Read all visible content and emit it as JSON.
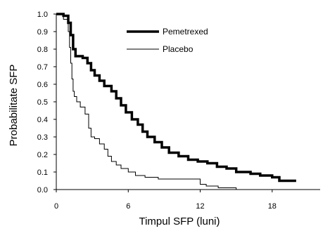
{
  "chart_data": {
    "type": "line",
    "xlabel": "Timpul SFP (luni)",
    "ylabel": "Probabilitate SFP",
    "xlim": [
      0,
      22
    ],
    "ylim": [
      0,
      1.0
    ],
    "x_ticks": [
      0,
      6,
      12,
      18
    ],
    "x_tick_labels": [
      "0",
      "6",
      "12",
      "18"
    ],
    "y_ticks": [
      0,
      0.1,
      0.2,
      0.3,
      0.4,
      0.5,
      0.6,
      0.7,
      0.8,
      0.9,
      1.0
    ],
    "y_tick_labels": [
      "0.0",
      "0.1",
      "0.2",
      "0.3",
      "0.4",
      "0.5",
      "0.6",
      "0.7",
      "0.8",
      "0.9",
      "1.0"
    ],
    "grid": false,
    "legend_position": "top-center",
    "series": [
      {
        "name": "Pemetrexed",
        "style": "step",
        "color": "#000000",
        "line": "thick",
        "x": [
          0,
          0.6,
          1.0,
          1.2,
          1.4,
          1.6,
          2.2,
          2.6,
          2.9,
          3.2,
          3.6,
          4.0,
          4.6,
          5.0,
          5.4,
          5.8,
          6.3,
          6.8,
          7.2,
          7.6,
          8.2,
          8.8,
          9.4,
          10.2,
          11.0,
          11.8,
          12.6,
          13.4,
          14.2,
          15.0,
          16.2,
          17.0,
          18.0,
          18.6,
          20.0
        ],
        "y": [
          1.0,
          0.99,
          0.95,
          0.88,
          0.8,
          0.76,
          0.75,
          0.72,
          0.68,
          0.65,
          0.62,
          0.59,
          0.56,
          0.52,
          0.48,
          0.44,
          0.4,
          0.37,
          0.33,
          0.3,
          0.27,
          0.24,
          0.21,
          0.19,
          0.17,
          0.16,
          0.15,
          0.13,
          0.12,
          0.1,
          0.09,
          0.08,
          0.07,
          0.05,
          0.05
        ]
      },
      {
        "name": "Placebo",
        "style": "step",
        "color": "#000000",
        "line": "thin",
        "x": [
          0,
          0.6,
          1.0,
          1.1,
          1.2,
          1.3,
          1.4,
          1.5,
          1.7,
          2.0,
          2.4,
          2.7,
          2.9,
          3.2,
          3.6,
          4.0,
          4.3,
          4.6,
          5.0,
          5.4,
          6.0,
          6.6,
          7.4,
          8.5,
          10.0,
          12.0,
          12.5,
          13.5,
          14.5,
          15.0
        ],
        "y": [
          1.0,
          0.97,
          0.9,
          0.81,
          0.72,
          0.63,
          0.56,
          0.53,
          0.5,
          0.47,
          0.43,
          0.35,
          0.3,
          0.29,
          0.26,
          0.23,
          0.19,
          0.16,
          0.14,
          0.12,
          0.1,
          0.08,
          0.07,
          0.06,
          0.06,
          0.03,
          0.02,
          0.01,
          0.01,
          0.0
        ]
      }
    ]
  }
}
